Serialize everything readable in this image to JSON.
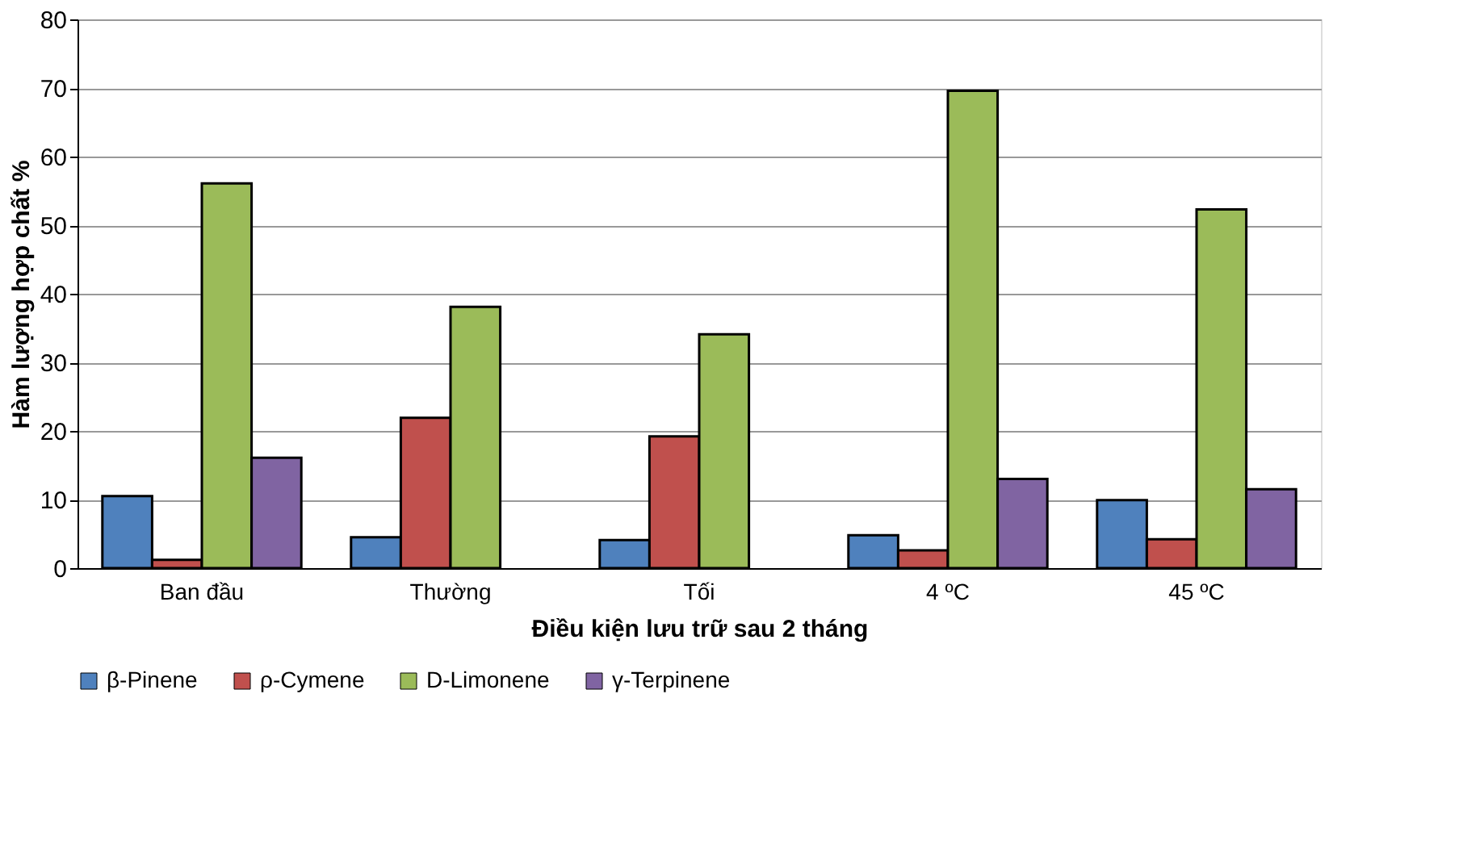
{
  "chart_data": {
    "type": "bar",
    "xlabel": "Điều kiện lưu trữ sau 2 tháng",
    "ylabel": "Hàm lượng hợp chất %",
    "categories": [
      "Ban đầu",
      "Thường",
      "Tối",
      "4 ºC",
      "45 ºC"
    ],
    "series": [
      {
        "name": "β-Pinene",
        "color": "#4f81bd",
        "values": [
          10.5,
          4.5,
          4.1,
          4.8,
          9.9
        ]
      },
      {
        "name": "ρ-Cymene",
        "color": "#c0504d",
        "values": [
          1.2,
          21.9,
          19.2,
          2.6,
          4.2
        ]
      },
      {
        "name": "D-Limonene",
        "color": "#9bbb59",
        "values": [
          56.1,
          38.1,
          34.1,
          69.6,
          52.3
        ]
      },
      {
        "name": "γ-Terpinene",
        "color": "#8064a2",
        "values": [
          16.1,
          null,
          null,
          13.0,
          11.5
        ]
      }
    ],
    "ylim": [
      0,
      80
    ],
    "yticks": [
      0,
      10,
      20,
      30,
      40,
      50,
      60,
      70,
      80
    ],
    "grid": "y",
    "legend": "bottom"
  }
}
